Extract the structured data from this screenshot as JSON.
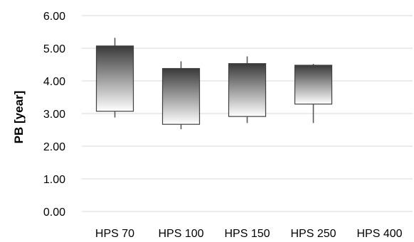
{
  "chart_data": {
    "type": "box",
    "title": "",
    "xlabel": "",
    "ylabel": "PB [year]",
    "ylim": [
      0,
      6
    ],
    "yticks": [
      0,
      1,
      2,
      3,
      4,
      5,
      6
    ],
    "ytick_labels": [
      "0.00",
      "1.00",
      "2.00",
      "3.00",
      "4.00",
      "5.00",
      "6.00"
    ],
    "grid": "horizontal",
    "legend": "none",
    "categories": [
      "HPS 70",
      "HPS 100",
      "HPS 150",
      "HPS 250",
      "HPS 400"
    ],
    "series": [
      {
        "boxes": [
          {
            "category": "HPS 70",
            "min": 2.88,
            "q1": 3.07,
            "q3": 5.07,
            "max": 5.32
          },
          {
            "category": "HPS 100",
            "min": 2.52,
            "q1": 2.67,
            "q3": 4.38,
            "max": 4.6
          },
          {
            "category": "HPS 150",
            "min": 2.71,
            "q1": 2.91,
            "q3": 4.53,
            "max": 4.75
          },
          {
            "category": "HPS 250",
            "min": 2.71,
            "q1": 3.29,
            "q3": 4.48,
            "max": 4.52
          },
          {
            "category": "HPS 400",
            "min": null,
            "q1": null,
            "q3": null,
            "max": null
          }
        ]
      }
    ],
    "colors": {
      "box_top": "#3a3a3a",
      "box_bottom": "#ffffff",
      "grid": "#d9d9d9",
      "whisker": "#595959"
    }
  }
}
